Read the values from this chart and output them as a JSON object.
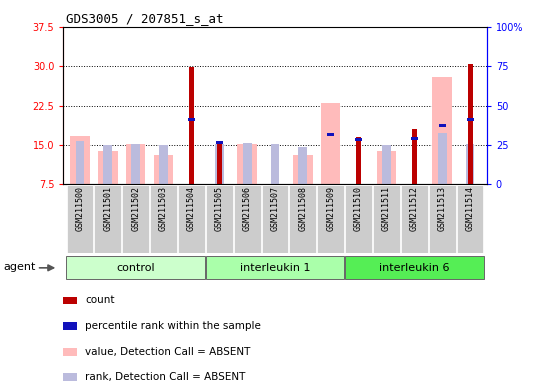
{
  "title": "GDS3005 / 207851_s_at",
  "samples": [
    "GSM211500",
    "GSM211501",
    "GSM211502",
    "GSM211503",
    "GSM211504",
    "GSM211505",
    "GSM211506",
    "GSM211507",
    "GSM211508",
    "GSM211509",
    "GSM211510",
    "GSM211511",
    "GSM211512",
    "GSM211513",
    "GSM211514"
  ],
  "count_values": [
    null,
    null,
    null,
    null,
    29.8,
    15.1,
    null,
    null,
    null,
    null,
    16.5,
    null,
    18.0,
    null,
    30.5
  ],
  "pct_rank_values": [
    null,
    null,
    null,
    null,
    19.5,
    15.2,
    null,
    null,
    null,
    16.7,
    15.7,
    null,
    16.0,
    18.5,
    19.5
  ],
  "value_absent": [
    16.7,
    13.8,
    15.2,
    13.1,
    null,
    null,
    15.2,
    null,
    13.1,
    23.0,
    null,
    13.8,
    null,
    28.0,
    null
  ],
  "rank_absent": [
    15.8,
    15.0,
    15.2,
    15.0,
    null,
    15.2,
    15.3,
    15.2,
    14.7,
    null,
    null,
    15.0,
    null,
    17.2,
    15.2
  ],
  "ymin": 7.5,
  "ymax": 37.5,
  "yticks_left": [
    7.5,
    15.0,
    22.5,
    30.0,
    37.5
  ],
  "yticks_right": [
    0,
    25,
    50,
    75,
    100
  ],
  "grid_lines": [
    15.0,
    22.5,
    30.0
  ],
  "count_color": "#bb0000",
  "pct_rank_color": "#1111bb",
  "value_absent_color": "#ffbbbb",
  "rank_absent_color": "#bbbbdd",
  "bg_plot_color": "#ffffff",
  "tick_bg_color": "#cccccc",
  "group_info": [
    {
      "start": 0,
      "end": 4,
      "label": "control",
      "color": "#ccffcc"
    },
    {
      "start": 5,
      "end": 9,
      "label": "interleukin 1",
      "color": "#aaffaa"
    },
    {
      "start": 10,
      "end": 14,
      "label": "interleukin 6",
      "color": "#55ee55"
    }
  ],
  "legend_items": [
    {
      "color": "#bb0000",
      "label": "count"
    },
    {
      "color": "#1111bb",
      "label": "percentile rank within the sample"
    },
    {
      "color": "#ffbbbb",
      "label": "value, Detection Call = ABSENT"
    },
    {
      "color": "#bbbbdd",
      "label": "rank, Detection Call = ABSENT"
    }
  ]
}
